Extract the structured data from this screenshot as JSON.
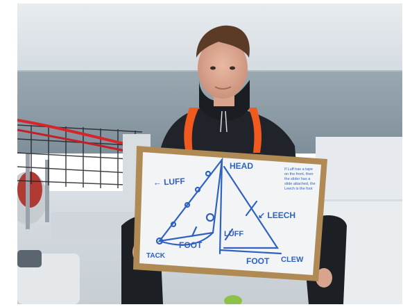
{
  "photo": {
    "subject": "person holding whiteboard with sail diagram",
    "whiteboard": {
      "labels": {
        "head": "HEAD",
        "luff_left": "← LUFF",
        "leech": "↙ LEECH",
        "luff_right": "LUFF",
        "foot_left": "FOOT",
        "foot_right": "FOOT",
        "tack": "TACK",
        "clew": "CLEW"
      },
      "note_lines": [
        "If Luff has a tape",
        "on the front, then",
        "the slider has a",
        "slide attached, the",
        "Leech is the foot"
      ]
    },
    "colors": {
      "sky": "#dfe5ea",
      "sea": "#8e9ca7",
      "jacket": "#20242a",
      "vest": "#f05a1e",
      "board_frame": "#b08a55",
      "board": "#f3f4f6",
      "marker": "#2f62c0",
      "rope": "#d5262c"
    }
  }
}
